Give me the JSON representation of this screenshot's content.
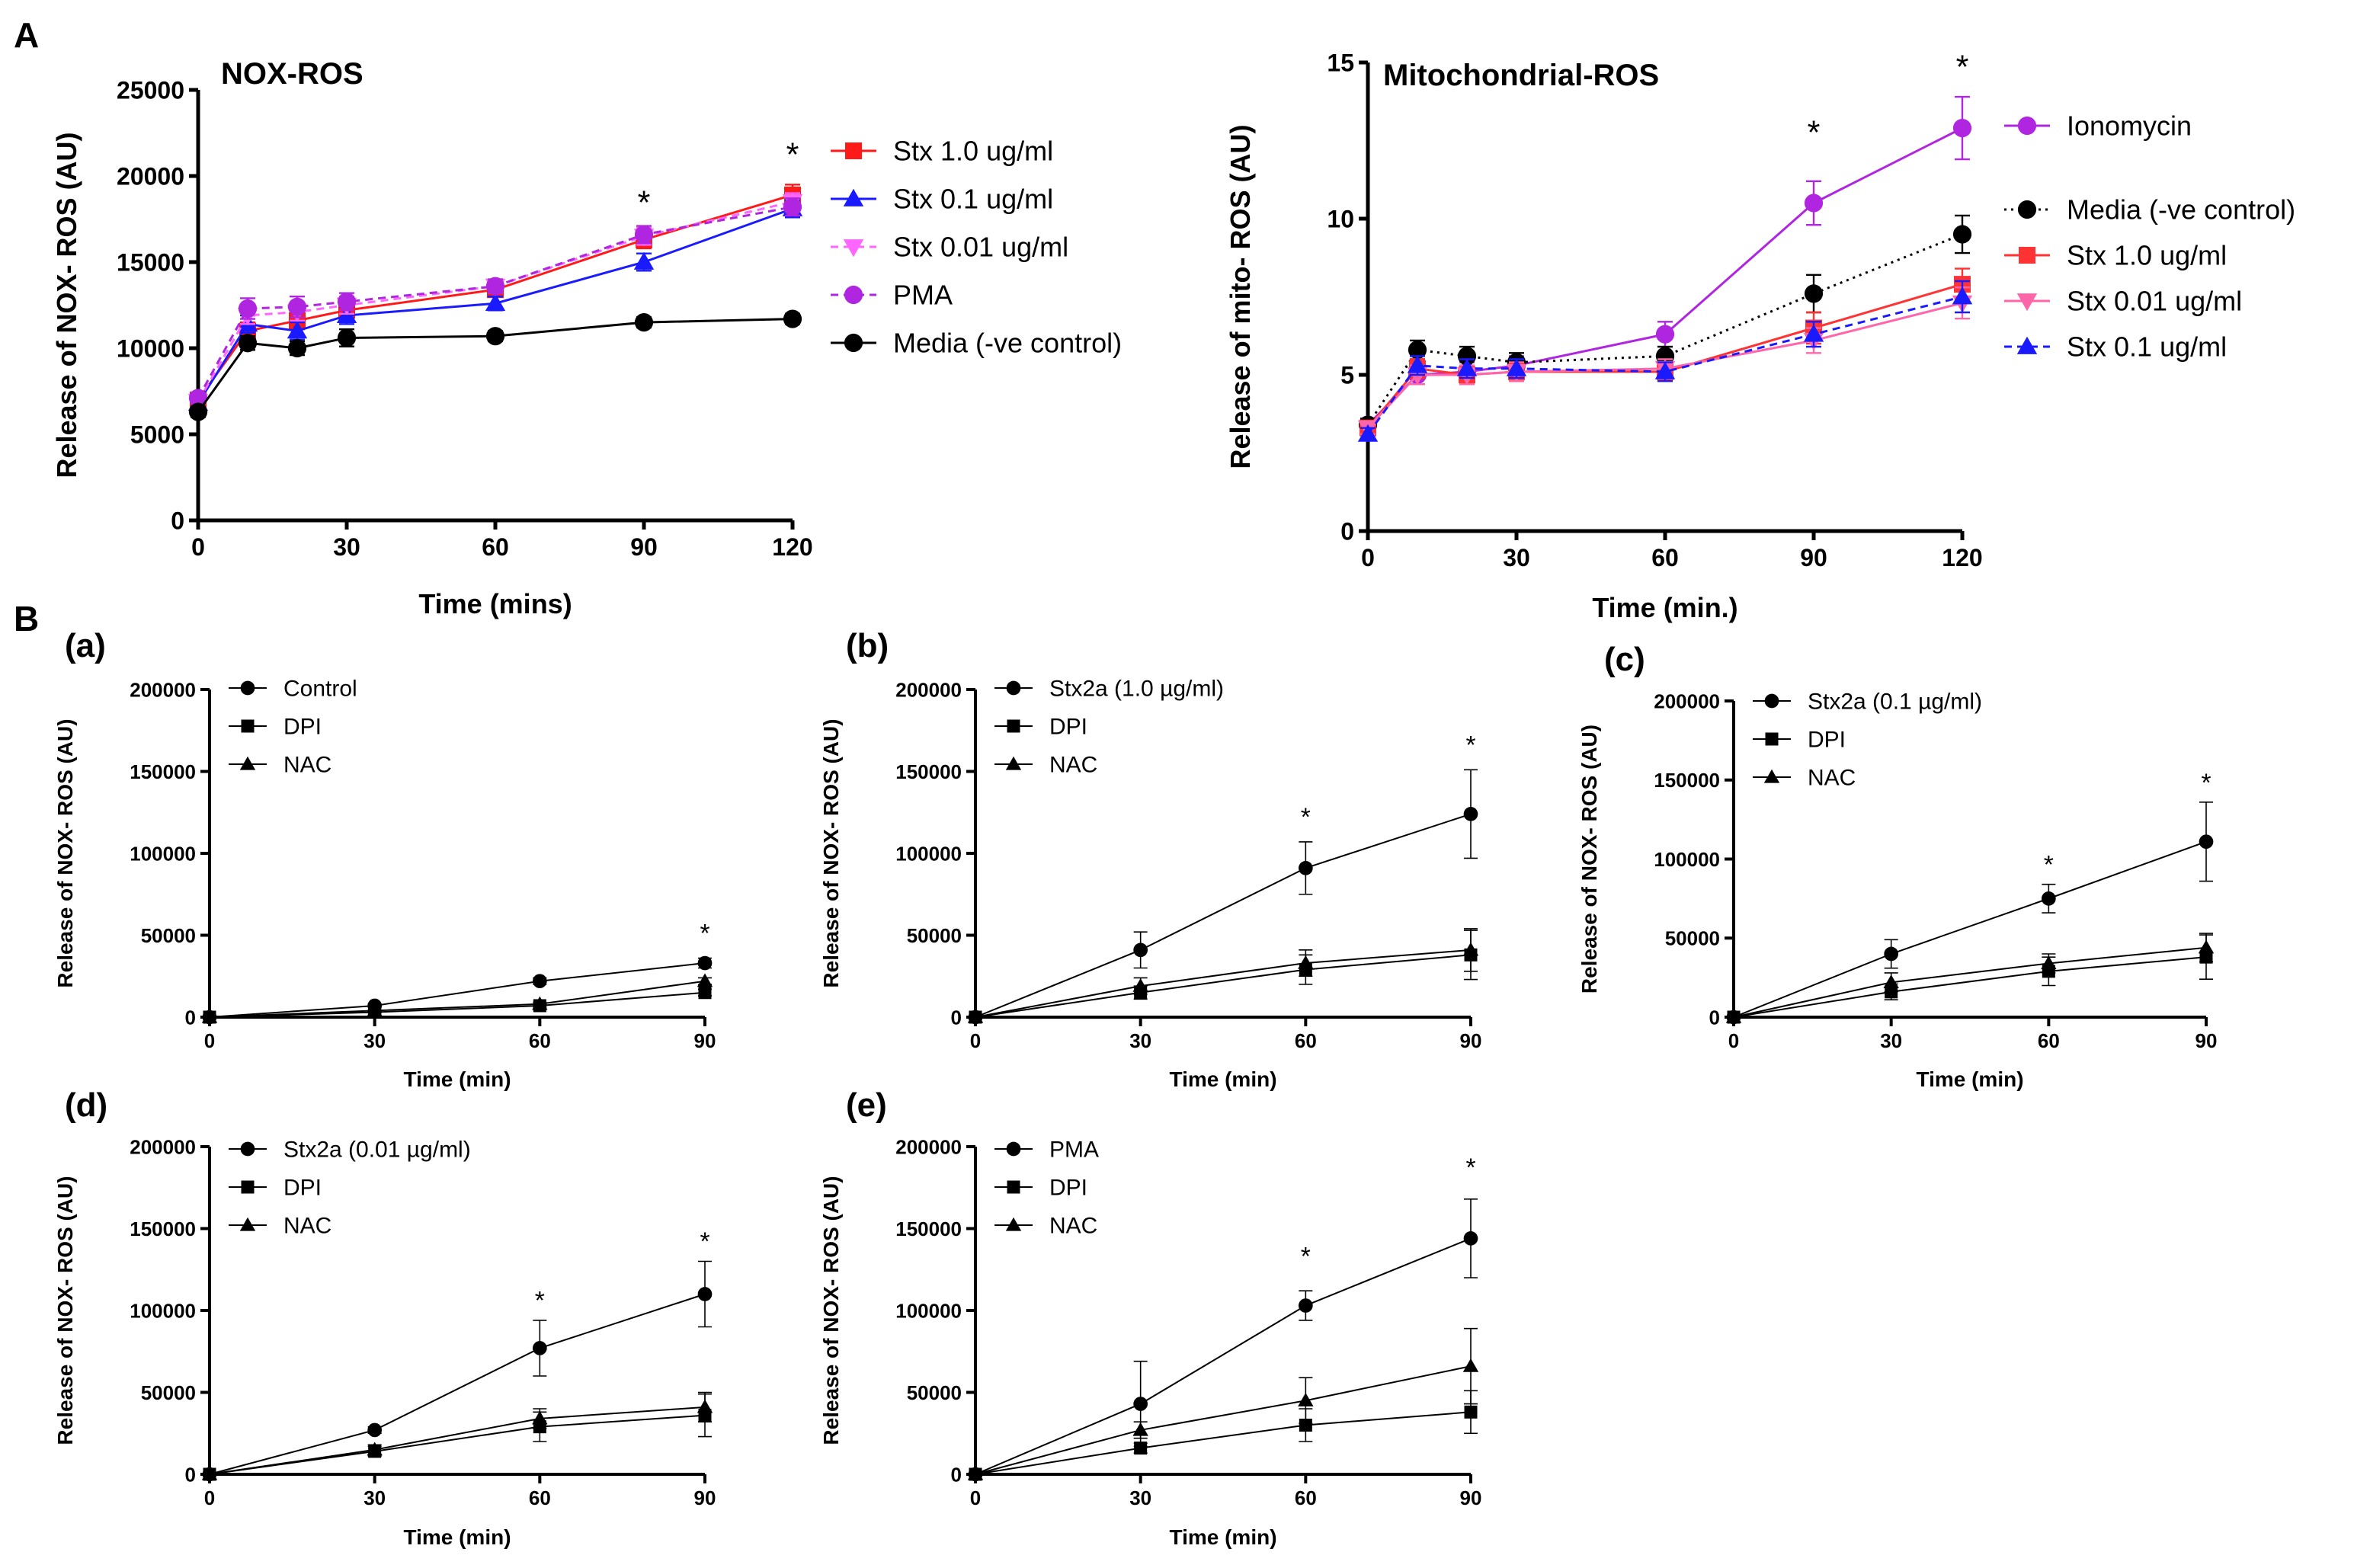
{
  "figure": {
    "panel_A_label": "A",
    "panel_B_label": "B"
  },
  "chart_data": [
    {
      "id": "nox",
      "type": "line",
      "title": "NOX-ROS",
      "xlabel": "Time  (mins)",
      "ylabel": "Release of NOX- ROS (AU)",
      "xlim": [
        0,
        120
      ],
      "ylim": [
        0,
        25000
      ],
      "xticks": [
        0,
        30,
        60,
        90,
        120
      ],
      "yticks": [
        0,
        5000,
        10000,
        15000,
        20000,
        25000
      ],
      "x": [
        0,
        10,
        20,
        30,
        60,
        90,
        120
      ],
      "series": [
        {
          "name": "Stx 1.0 ug/ml",
          "color": "#ff1a1a",
          "marker": "square",
          "dash": "solid",
          "values": [
            7000,
            11000,
            11600,
            12200,
            13400,
            16300,
            18900
          ],
          "err": [
            300,
            500,
            500,
            500,
            400,
            500,
            600
          ]
        },
        {
          "name": "Stx 0.1 ug/ml",
          "color": "#1a1aff",
          "marker": "triangle",
          "dash": "solid",
          "values": [
            6800,
            11400,
            11000,
            11900,
            12600,
            15000,
            18100
          ],
          "err": [
            300,
            500,
            500,
            500,
            400,
            500,
            500
          ]
        },
        {
          "name": "Stx 0.01 ug/ml",
          "color": "#ff66ff",
          "marker": "triangle-down",
          "dash": "dashed",
          "values": [
            6900,
            11900,
            12100,
            12500,
            13600,
            16500,
            18500
          ],
          "err": [
            300,
            500,
            500,
            500,
            400,
            500,
            500
          ]
        },
        {
          "name": "PMA",
          "color": "#b026e0",
          "marker": "circle",
          "dash": "dashed",
          "values": [
            7100,
            12300,
            12400,
            12700,
            13600,
            16600,
            18200
          ],
          "err": [
            300,
            600,
            600,
            500,
            400,
            500,
            500
          ]
        },
        {
          "name": "Media (-ve control)",
          "color": "#000000",
          "marker": "circle",
          "dash": "solid",
          "values": [
            6300,
            10300,
            10000,
            10600,
            10700,
            11500,
            11700
          ],
          "err": [
            300,
            400,
            400,
            500,
            300,
            300,
            300
          ]
        }
      ],
      "annotations": [
        {
          "x": 90,
          "y": 17800,
          "text": "*"
        },
        {
          "x": 120,
          "y": 20600,
          "text": "*"
        }
      ]
    },
    {
      "id": "mito",
      "type": "line",
      "title": "Mitochondrial-ROS",
      "xlabel": "Time  (min.)",
      "ylabel": "Release of mito- ROS (AU)",
      "xlim": [
        0,
        120
      ],
      "ylim": [
        0,
        15
      ],
      "xticks": [
        0,
        30,
        60,
        90,
        120
      ],
      "yticks": [
        0,
        5,
        10,
        15
      ],
      "x": [
        0,
        10,
        20,
        30,
        60,
        90,
        120
      ],
      "series": [
        {
          "name": "Ionomycin",
          "color": "#b026e0",
          "marker": "circle",
          "dash": "solid",
          "values": [
            3.4,
            5.0,
            5.1,
            5.3,
            6.3,
            10.5,
            12.9
          ],
          "err": [
            0.2,
            0.3,
            0.3,
            0.3,
            0.4,
            0.7,
            1.0
          ]
        },
        {
          "name": "Media (-ve control)",
          "color": "#000000",
          "marker": "circle",
          "dash": "dotted",
          "values": [
            3.4,
            5.8,
            5.6,
            5.4,
            5.6,
            7.6,
            9.5
          ],
          "err": [
            0.2,
            0.3,
            0.3,
            0.3,
            0.3,
            0.6,
            0.6
          ]
        },
        {
          "name": "Stx 1.0 ug/ml",
          "color": "#ff3333",
          "marker": "square",
          "dash": "solid",
          "values": [
            3.3,
            5.2,
            5.0,
            5.1,
            5.1,
            6.5,
            7.9
          ],
          "err": [
            0.2,
            0.3,
            0.3,
            0.3,
            0.3,
            0.5,
            0.5
          ]
        },
        {
          "name": "Stx 0.01 ug/ml",
          "color": "#ff66aa",
          "marker": "triangle-down",
          "dash": "solid",
          "values": [
            3.3,
            5.0,
            5.0,
            5.1,
            5.2,
            6.1,
            7.3
          ],
          "err": [
            0.2,
            0.3,
            0.3,
            0.3,
            0.3,
            0.4,
            0.5
          ]
        },
        {
          "name": "Stx 0.1 ug/ml",
          "color": "#1a1aff",
          "marker": "triangle",
          "dash": "dashed",
          "values": [
            3.1,
            5.3,
            5.2,
            5.2,
            5.1,
            6.3,
            7.5
          ],
          "err": [
            0.2,
            0.3,
            0.3,
            0.3,
            0.3,
            0.4,
            0.5
          ]
        }
      ],
      "annotations": [
        {
          "x": 90,
          "y": 12.4,
          "text": "*"
        },
        {
          "x": 120,
          "y": 14.5,
          "text": "*"
        }
      ]
    },
    {
      "id": "a",
      "label": "(a)",
      "type": "line",
      "xlabel": "Time (min)",
      "ylabel": "Release of NOX- ROS (AU)",
      "xlim": [
        0,
        90
      ],
      "ylim": [
        0,
        200000
      ],
      "xticks": [
        0,
        30,
        60,
        90
      ],
      "yticks": [
        0,
        50000,
        100000,
        150000,
        200000
      ],
      "x": [
        0,
        30,
        60,
        90
      ],
      "series": [
        {
          "name": "Control",
          "marker": "circle",
          "values": [
            0,
            7000,
            22000,
            33000
          ],
          "err": [
            0,
            1000,
            2000,
            3000
          ]
        },
        {
          "name": "DPI",
          "marker": "square",
          "values": [
            0,
            3000,
            7000,
            15000
          ],
          "err": [
            0,
            500,
            1000,
            2000
          ]
        },
        {
          "name": "NAC",
          "marker": "triangle",
          "values": [
            0,
            4000,
            8000,
            22000
          ],
          "err": [
            0,
            500,
            1000,
            2000
          ]
        }
      ],
      "annotations": [
        {
          "x": 90,
          "y": 46000,
          "text": "*"
        }
      ]
    },
    {
      "id": "b",
      "label": "(b)",
      "type": "line",
      "xlabel": "Time (min)",
      "ylabel": "Release of NOX- ROS (AU)",
      "xlim": [
        0,
        90
      ],
      "ylim": [
        0,
        200000
      ],
      "xticks": [
        0,
        30,
        60,
        90
      ],
      "yticks": [
        0,
        50000,
        100000,
        150000,
        200000
      ],
      "x": [
        0,
        30,
        60,
        90
      ],
      "series": [
        {
          "name": "Stx2a (1.0 µg/ml)",
          "marker": "circle",
          "values": [
            0,
            41000,
            91000,
            124000
          ],
          "err": [
            0,
            11000,
            16000,
            27000
          ]
        },
        {
          "name": "DPI",
          "marker": "square",
          "values": [
            0,
            15000,
            29000,
            38000
          ],
          "err": [
            0,
            4000,
            9000,
            15000
          ]
        },
        {
          "name": "NAC",
          "marker": "triangle",
          "values": [
            0,
            19000,
            33000,
            41000
          ],
          "err": [
            0,
            5000,
            8000,
            13000
          ]
        }
      ],
      "annotations": [
        {
          "x": 60,
          "y": 117000,
          "text": "*"
        },
        {
          "x": 90,
          "y": 161000,
          "text": "*"
        }
      ]
    },
    {
      "id": "c",
      "label": "(c)",
      "type": "line",
      "xlabel": "Time (min)",
      "ylabel": "Release of NOX- ROS (AU)",
      "xlim": [
        0,
        90
      ],
      "ylim": [
        0,
        200000
      ],
      "xticks": [
        0,
        30,
        60,
        90
      ],
      "yticks": [
        0,
        50000,
        100000,
        150000,
        200000
      ],
      "x": [
        0,
        30,
        60,
        90
      ],
      "series": [
        {
          "name": "Stx2a (0.1 µg/ml)",
          "marker": "circle",
          "values": [
            0,
            40000,
            75000,
            111000
          ],
          "err": [
            0,
            9000,
            9000,
            25000
          ]
        },
        {
          "name": "DPI",
          "marker": "square",
          "values": [
            0,
            16000,
            29000,
            38000
          ],
          "err": [
            0,
            5000,
            9000,
            14000
          ]
        },
        {
          "name": "NAC",
          "marker": "triangle",
          "values": [
            0,
            22000,
            34000,
            44000
          ],
          "err": [
            0,
            6000,
            6000,
            9000
          ]
        }
      ],
      "annotations": [
        {
          "x": 60,
          "y": 91000,
          "text": "*"
        },
        {
          "x": 90,
          "y": 143000,
          "text": "*"
        }
      ]
    },
    {
      "id": "d",
      "label": "(d)",
      "type": "line",
      "xlabel": "Time (min)",
      "ylabel": "Release of NOX- ROS (AU)",
      "xlim": [
        0,
        90
      ],
      "ylim": [
        0,
        200000
      ],
      "xticks": [
        0,
        30,
        60,
        90
      ],
      "yticks": [
        0,
        50000,
        100000,
        150000,
        200000
      ],
      "x": [
        0,
        30,
        60,
        90
      ],
      "series": [
        {
          "name": "Stx2a (0.01 µg/ml)",
          "marker": "circle",
          "values": [
            0,
            27000,
            77000,
            110000
          ],
          "err": [
            0,
            2000,
            17000,
            20000
          ]
        },
        {
          "name": "DPI",
          "marker": "square",
          "values": [
            0,
            14000,
            29000,
            36000
          ],
          "err": [
            0,
            3000,
            9000,
            13000
          ]
        },
        {
          "name": "NAC",
          "marker": "triangle",
          "values": [
            0,
            15000,
            34000,
            41000
          ],
          "err": [
            0,
            3000,
            6000,
            9000
          ]
        }
      ],
      "annotations": [
        {
          "x": 60,
          "y": 101000,
          "text": "*"
        },
        {
          "x": 90,
          "y": 137000,
          "text": "*"
        }
      ]
    },
    {
      "id": "e",
      "label": "(e)",
      "type": "line",
      "xlabel": "Time (min)",
      "ylabel": "Release of NOX- ROS (AU)",
      "xlim": [
        0,
        90
      ],
      "ylim": [
        0,
        200000
      ],
      "xticks": [
        0,
        30,
        60,
        90
      ],
      "yticks": [
        0,
        50000,
        100000,
        150000,
        200000
      ],
      "x": [
        0,
        30,
        60,
        90
      ],
      "series": [
        {
          "name": "PMA",
          "marker": "circle",
          "values": [
            0,
            43000,
            103000,
            144000
          ],
          "err": [
            0,
            26000,
            9000,
            24000
          ]
        },
        {
          "name": "DPI",
          "marker": "square",
          "values": [
            0,
            16000,
            30000,
            38000
          ],
          "err": [
            0,
            3000,
            10000,
            13000
          ]
        },
        {
          "name": "NAC",
          "marker": "triangle",
          "values": [
            0,
            27000,
            45000,
            66000
          ],
          "err": [
            0,
            5000,
            14000,
            23000
          ]
        }
      ],
      "annotations": [
        {
          "x": 60,
          "y": 128000,
          "text": "*"
        },
        {
          "x": 90,
          "y": 182000,
          "text": "*"
        }
      ]
    }
  ]
}
